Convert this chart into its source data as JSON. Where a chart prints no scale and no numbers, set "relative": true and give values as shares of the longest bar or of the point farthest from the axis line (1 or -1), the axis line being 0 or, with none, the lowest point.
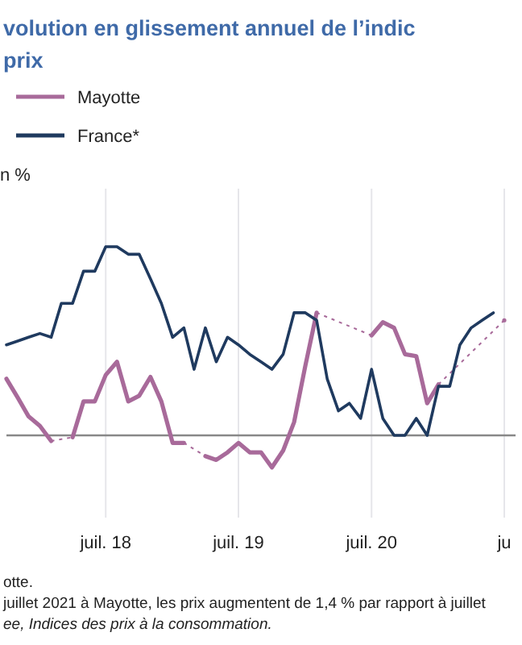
{
  "chart_data": {
    "type": "line",
    "title": "volution en glissement annuel de l’indic\nprix",
    "ylabel": "n %",
    "relative": true,
    "grid": "x",
    "legend": "top left",
    "line_style": "solid",
    "marker": "none",
    "x": [
      "2017-10",
      "2017-11",
      "2017-12",
      "2018-01",
      "2018-02",
      "2018-03",
      "2018-04",
      "2018-05",
      "2018-06",
      "2018-07",
      "2018-08",
      "2018-09",
      "2018-10",
      "2018-11",
      "2018-12",
      "2019-01",
      "2019-02",
      "2019-03",
      "2019-04",
      "2019-05",
      "2019-06",
      "2019-07",
      "2019-08",
      "2019-09",
      "2019-10",
      "2019-11",
      "2019-12",
      "2020-01",
      "2020-02",
      "2020-03",
      "2020-04",
      "2020-05",
      "2020-06",
      "2020-07",
      "2020-08",
      "2020-09",
      "2020-10",
      "2020-11",
      "2020-12",
      "2021-01",
      "2021-02",
      "2021-03",
      "2021-04",
      "2021-05",
      "2021-06",
      "2021-07"
    ],
    "xlim": [
      "2017-10",
      "2021-08"
    ],
    "xticks": [
      {
        "value": "2018-07",
        "label": "juil. 18"
      },
      {
        "value": "2019-07",
        "label": "juil. 19"
      },
      {
        "value": "2020-07",
        "label": "juil. 20"
      },
      {
        "value": "2021-07",
        "label": "ju"
      }
    ],
    "series": [
      {
        "name": "Mayotte",
        "color": "#a86a9a",
        "values": [
          0.3,
          0.2,
          0.1,
          0.05,
          -0.03,
          null,
          -0.01,
          0.18,
          0.18,
          0.32,
          0.39,
          0.18,
          0.21,
          0.31,
          0.18,
          -0.04,
          -0.04,
          null,
          -0.11,
          -0.13,
          -0.09,
          -0.04,
          -0.09,
          -0.09,
          -0.17,
          -0.08,
          0.07,
          0.37,
          0.65,
          null,
          null,
          null,
          null,
          0.53,
          0.6,
          0.57,
          0.43,
          0.42,
          0.17,
          0.27,
          null,
          null,
          null,
          null,
          null,
          0.61
        ]
      },
      {
        "name": "France*",
        "color": "#1f3a5f",
        "values": [
          0.48,
          0.5,
          0.52,
          0.54,
          0.52,
          0.7,
          0.7,
          0.87,
          0.87,
          1,
          1,
          0.96,
          0.96,
          0.83,
          0.7,
          0.52,
          0.57,
          0.35,
          0.57,
          0.39,
          0.52,
          0.48,
          0.43,
          0.39,
          0.35,
          0.43,
          0.65,
          0.65,
          0.61,
          0.3,
          0.13,
          0.17,
          0.09,
          0.35,
          0.09,
          0,
          0,
          0.09,
          0,
          0.26,
          0.26,
          0.48,
          0.57,
          0.61,
          0.65,
          null
        ]
      }
    ],
    "annotations": [
      "otte.",
      "juillet 2021 à Mayotte, les prix augmentent de 1,4 % par rapport à juillet",
      "ee, Indices des prix à la consommation."
    ]
  }
}
